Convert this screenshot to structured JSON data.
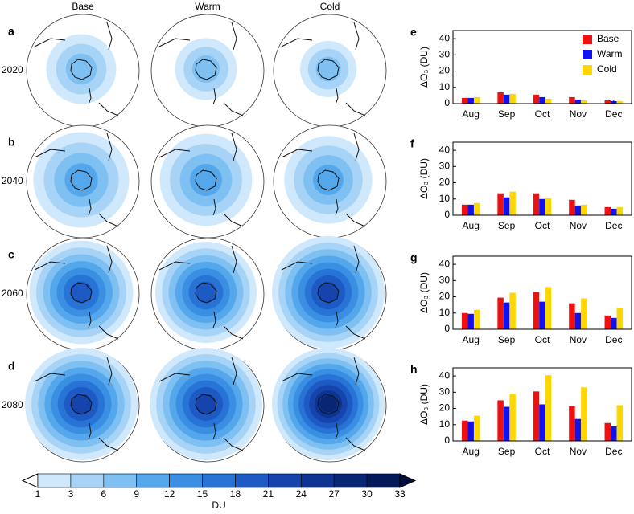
{
  "maps": {
    "columns": [
      "Base",
      "Warm",
      "Cold"
    ],
    "rows": [
      {
        "letter": "a",
        "year": "2020"
      },
      {
        "letter": "b",
        "year": "2040"
      },
      {
        "letter": "c",
        "year": "2060"
      },
      {
        "letter": "d",
        "year": "2080"
      }
    ],
    "colorbar": {
      "ticks": [
        1,
        3,
        6,
        9,
        12,
        15,
        18,
        21,
        24,
        27,
        30,
        33
      ],
      "label": "DU",
      "colors": [
        "#cfe8fb",
        "#a7d4f6",
        "#7fc0f2",
        "#55a7ec",
        "#3a8fe3",
        "#2874d6",
        "#1e5ac4",
        "#1545ac",
        "#0d3491",
        "#082674",
        "#04195a"
      ],
      "under_color": "#ffffff",
      "over_color": "#020f3c"
    }
  },
  "chart_data": [
    {
      "type": "bar",
      "label": "e",
      "ylabel": "ΔO₃ (DU)",
      "categories": [
        "Aug",
        "Sep",
        "Oct",
        "Nov",
        "Dec"
      ],
      "series": [
        {
          "name": "Base",
          "color": "#ee1111",
          "values": [
            3.5,
            7,
            5.5,
            4,
            2
          ]
        },
        {
          "name": "Warm",
          "color": "#1111ee",
          "values": [
            3.5,
            5.5,
            4,
            2.5,
            1.5
          ]
        },
        {
          "name": "Cold",
          "color": "#ffd700",
          "values": [
            4,
            6,
            3,
            2,
            1.5
          ]
        }
      ],
      "ylim": [
        0,
        45
      ],
      "yticks": [
        0,
        10,
        20,
        30,
        40
      ],
      "legend": "top-right"
    },
    {
      "type": "bar",
      "label": "f",
      "ylabel": "ΔO₃ (DU)",
      "categories": [
        "Aug",
        "Sep",
        "Oct",
        "Nov",
        "Dec"
      ],
      "series": [
        {
          "color": "#ee1111",
          "values": [
            6.5,
            13.5,
            13.5,
            9.5,
            5
          ]
        },
        {
          "color": "#1111ee",
          "values": [
            6.5,
            11,
            10,
            6,
            4
          ]
        },
        {
          "color": "#ffd700",
          "values": [
            7.5,
            14.5,
            10.5,
            6.5,
            5
          ]
        }
      ],
      "ylim": [
        0,
        45
      ],
      "yticks": [
        0,
        10,
        20,
        30,
        40
      ]
    },
    {
      "type": "bar",
      "label": "g",
      "ylabel": "ΔO₃ (DU)",
      "categories": [
        "Aug",
        "Sep",
        "Oct",
        "Nov",
        "Dec"
      ],
      "series": [
        {
          "color": "#ee1111",
          "values": [
            10,
            19.5,
            23,
            16,
            8.5
          ]
        },
        {
          "color": "#1111ee",
          "values": [
            9.5,
            16.5,
            17,
            10,
            7
          ]
        },
        {
          "color": "#ffd700",
          "values": [
            12,
            22.5,
            26,
            19,
            13
          ]
        }
      ],
      "ylim": [
        0,
        45
      ],
      "yticks": [
        0,
        10,
        20,
        30,
        40
      ]
    },
    {
      "type": "bar",
      "label": "h",
      "ylabel": "ΔO₃ (DU)",
      "categories": [
        "Aug",
        "Sep",
        "Oct",
        "Nov",
        "Dec"
      ],
      "series": [
        {
          "color": "#ee1111",
          "values": [
            12.5,
            25,
            30.5,
            21.5,
            11
          ]
        },
        {
          "color": "#1111ee",
          "values": [
            12,
            21,
            22.5,
            13.5,
            9
          ]
        },
        {
          "color": "#ffd700",
          "values": [
            15.5,
            29,
            40.5,
            33,
            22
          ]
        }
      ],
      "ylim": [
        0,
        45
      ],
      "yticks": [
        0,
        10,
        20,
        30,
        40
      ]
    }
  ]
}
